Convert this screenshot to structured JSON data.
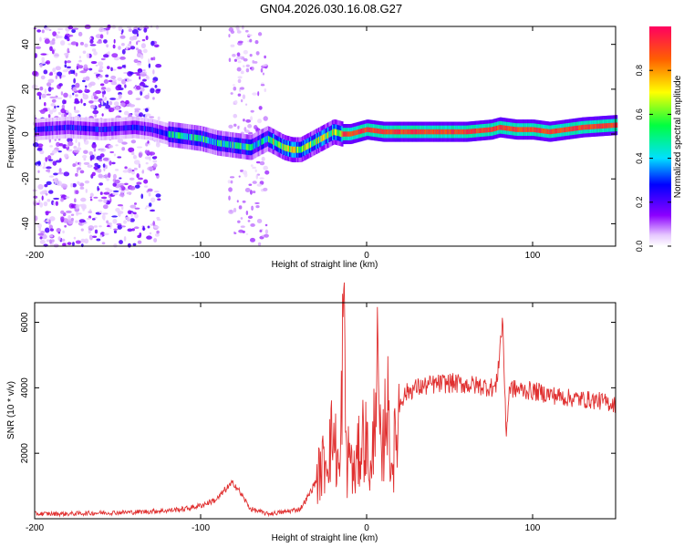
{
  "title": "GN04.2026.030.16.08.G27",
  "colors": {
    "snr_line": "#e03030",
    "axis": "#000000"
  },
  "chart_data": [
    {
      "type": "heatmap",
      "name": "spectrogram",
      "title": "GN04.2026.030.16.08.G27",
      "xlabel": "Height of straight line (km)",
      "ylabel": "Frequency (Hz)",
      "xlim": [
        -200,
        150
      ],
      "ylim": [
        -50,
        48
      ],
      "x_ticks": [
        -200,
        -100,
        0,
        100
      ],
      "x_tick_labels": [
        "-200",
        "-100",
        "0",
        "100"
      ],
      "y_ticks": [
        -40,
        -20,
        0,
        20,
        40
      ],
      "y_tick_labels": [
        "-40",
        "-20",
        "0",
        "20",
        "40"
      ],
      "ridge_frequency_hz": {
        "x": [
          -200,
          -180,
          -160,
          -140,
          -130,
          -120,
          -110,
          -100,
          -90,
          -80,
          -70,
          -60,
          -50,
          -45,
          -40,
          -35,
          -30,
          -25,
          -20,
          -15,
          -10,
          -5,
          0,
          10,
          20,
          40,
          60,
          75,
          80,
          90,
          100,
          110,
          130,
          150
        ],
        "y": [
          2,
          3,
          2,
          3,
          2,
          0,
          -1,
          -2,
          -4,
          -5,
          -6,
          -2,
          -6,
          -7,
          -7,
          -5,
          -3,
          -1,
          1,
          0,
          0,
          1,
          2,
          1,
          1,
          1,
          1,
          2,
          3,
          2,
          2,
          1,
          3,
          4
        ]
      },
      "noise_region_x": [
        -200,
        -125
      ],
      "noise_band_x": [
        -83,
        -60
      ],
      "colorbar": {
        "label": "Normalized spectral amplitude",
        "range": [
          0,
          1
        ],
        "ticks": [
          0.0,
          0.2,
          0.4,
          0.6,
          0.8
        ],
        "tick_labels": [
          "0.0",
          "0.2",
          "0.4",
          "0.6",
          "0.8"
        ]
      }
    },
    {
      "type": "line",
      "name": "snr",
      "xlabel": "Height of straight line (km)",
      "ylabel": "SNR (10 * v/v)",
      "xlim": [
        -200,
        150
      ],
      "ylim": [
        0,
        6600
      ],
      "x_ticks": [
        -200,
        -100,
        0,
        100
      ],
      "x_tick_labels": [
        "-200",
        "-100",
        "0",
        "100"
      ],
      "y_ticks": [
        2000,
        4000,
        6000
      ],
      "y_tick_labels": [
        "2000",
        "4000",
        "6000"
      ],
      "series": [
        {
          "name": "SNR",
          "x": [
            -200,
            -180,
            -160,
            -140,
            -120,
            -110,
            -100,
            -90,
            -85,
            -80,
            -75,
            -70,
            -60,
            -50,
            -40,
            -35,
            -30,
            -25,
            -20,
            -16,
            -14,
            -12,
            -10,
            -8,
            -5,
            -2,
            0,
            3,
            6,
            9,
            12,
            15,
            18,
            20,
            25,
            30,
            40,
            50,
            60,
            70,
            78,
            82,
            84,
            86,
            90,
            100,
            110,
            120,
            130,
            140,
            150
          ],
          "y": [
            150,
            150,
            180,
            200,
            250,
            300,
            400,
            600,
            900,
            1100,
            700,
            300,
            150,
            200,
            300,
            700,
            1200,
            1800,
            2600,
            1200,
            6500,
            1500,
            2200,
            1200,
            1900,
            2600,
            2300,
            1100,
            5000,
            1300,
            3900,
            1600,
            2500,
            3600,
            3900,
            4000,
            4100,
            4150,
            4100,
            4050,
            4000,
            6100,
            2500,
            4000,
            3950,
            3900,
            3800,
            3700,
            3650,
            3600,
            3500
          ]
        }
      ]
    }
  ]
}
